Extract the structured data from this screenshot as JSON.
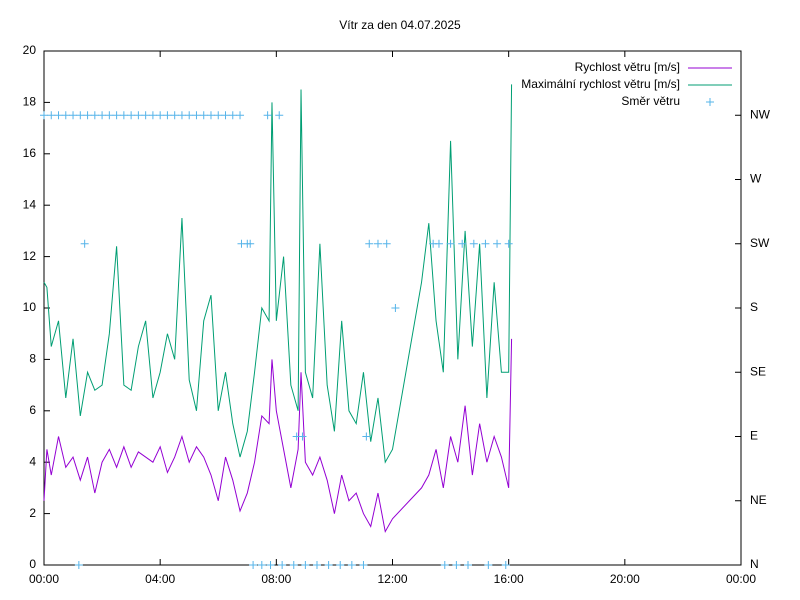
{
  "chart_data": {
    "type": "line",
    "title": "Vítr za den 04.07.2025",
    "xlim": [
      0,
      24
    ],
    "xticks": [
      {
        "value": 0,
        "label": "00:00"
      },
      {
        "value": 4,
        "label": "04:00"
      },
      {
        "value": 8,
        "label": "08:00"
      },
      {
        "value": 12,
        "label": "12:00"
      },
      {
        "value": 16,
        "label": "16:00"
      },
      {
        "value": 20,
        "label": "20:00"
      },
      {
        "value": 24,
        "label": "00:00"
      }
    ],
    "ylim": [
      0,
      20
    ],
    "yticks": [
      0,
      2,
      4,
      6,
      8,
      10,
      12,
      14,
      16,
      18,
      20
    ],
    "y2lim": [
      0,
      360
    ],
    "y2ticks": [
      {
        "value": 0,
        "label": "N"
      },
      {
        "value": 45,
        "label": "NE"
      },
      {
        "value": 90,
        "label": "E"
      },
      {
        "value": 135,
        "label": "SE"
      },
      {
        "value": 180,
        "label": "S"
      },
      {
        "value": 225,
        "label": "SW"
      },
      {
        "value": 270,
        "label": "W"
      },
      {
        "value": 315,
        "label": "NW"
      }
    ],
    "legend": "top right",
    "series": [
      {
        "name": "Rychlost větru [m/s]",
        "color": "#9400d3",
        "style": "line",
        "x": [
          0.0,
          0.1,
          0.25,
          0.5,
          0.75,
          1.0,
          1.25,
          1.5,
          1.75,
          2.0,
          2.25,
          2.5,
          2.75,
          3.0,
          3.25,
          3.5,
          3.75,
          4.0,
          4.25,
          4.5,
          4.75,
          5.0,
          5.25,
          5.5,
          5.75,
          6.0,
          6.25,
          6.5,
          6.75,
          7.0,
          7.25,
          7.5,
          7.75,
          7.85,
          8.0,
          8.25,
          8.5,
          8.75,
          8.85,
          9.0,
          9.25,
          9.5,
          9.75,
          10.0,
          10.25,
          10.5,
          10.75,
          11.0,
          11.25,
          11.5,
          11.75,
          12.0,
          13.0,
          13.25,
          13.5,
          13.75,
          14.0,
          14.25,
          14.5,
          14.75,
          15.0,
          15.25,
          15.5,
          15.75,
          16.0,
          16.1
        ],
        "values": [
          2.5,
          4.5,
          3.5,
          5.0,
          3.8,
          4.2,
          3.3,
          4.2,
          2.8,
          4.0,
          4.5,
          3.8,
          4.6,
          3.8,
          4.4,
          4.2,
          4.0,
          4.6,
          3.6,
          4.2,
          5.0,
          4.0,
          4.6,
          4.2,
          3.5,
          2.5,
          4.2,
          3.3,
          2.1,
          2.8,
          4.0,
          5.8,
          5.5,
          8.0,
          6.0,
          4.5,
          3.0,
          4.5,
          7.5,
          4.0,
          3.5,
          4.2,
          3.3,
          2.0,
          3.5,
          2.5,
          2.8,
          2.0,
          1.5,
          2.8,
          1.3,
          1.8,
          3.0,
          3.5,
          4.5,
          3.0,
          5.0,
          4.0,
          6.2,
          3.5,
          5.5,
          4.0,
          5.0,
          4.2,
          3.0,
          8.8
        ]
      },
      {
        "name": "Maximální rychlost větru [m/s]",
        "color": "#009e73",
        "style": "line",
        "x": [
          0.0,
          0.1,
          0.25,
          0.5,
          0.75,
          1.0,
          1.25,
          1.5,
          1.75,
          2.0,
          2.25,
          2.5,
          2.75,
          3.0,
          3.25,
          3.5,
          3.75,
          4.0,
          4.25,
          4.5,
          4.75,
          5.0,
          5.25,
          5.5,
          5.75,
          6.0,
          6.25,
          6.5,
          6.75,
          7.0,
          7.25,
          7.5,
          7.75,
          7.85,
          8.0,
          8.25,
          8.5,
          8.75,
          8.85,
          9.0,
          9.25,
          9.5,
          9.75,
          10.0,
          10.25,
          10.5,
          10.75,
          11.0,
          11.25,
          11.5,
          11.75,
          12.0,
          13.0,
          13.25,
          13.5,
          13.75,
          14.0,
          14.25,
          14.5,
          14.75,
          15.0,
          15.25,
          15.5,
          15.75,
          16.0,
          16.1
        ],
        "values": [
          11.0,
          10.8,
          8.5,
          9.5,
          6.5,
          8.8,
          5.8,
          7.5,
          6.8,
          7.0,
          9.0,
          12.4,
          7.0,
          6.8,
          8.5,
          9.5,
          6.5,
          7.5,
          9.0,
          8.0,
          13.5,
          7.2,
          6.0,
          9.5,
          10.5,
          6.0,
          7.5,
          5.5,
          4.2,
          5.2,
          7.5,
          10.0,
          9.5,
          18.0,
          9.5,
          12.0,
          7.0,
          6.0,
          18.5,
          7.5,
          6.5,
          12.5,
          7.0,
          5.2,
          9.5,
          6.0,
          5.5,
          7.5,
          4.8,
          6.5,
          4.0,
          4.5,
          11.0,
          13.3,
          9.5,
          7.5,
          16.5,
          8.0,
          13.0,
          8.5,
          12.5,
          6.5,
          11.0,
          7.5,
          7.5,
          18.7
        ]
      },
      {
        "name": "Směr větru",
        "color": "#56b4e9",
        "style": "points",
        "axis": "y2",
        "x": [
          0.0,
          0.25,
          0.5,
          0.75,
          1.0,
          1.25,
          1.5,
          1.75,
          2.0,
          2.25,
          2.5,
          2.75,
          3.0,
          3.25,
          3.5,
          3.75,
          4.0,
          4.25,
          4.5,
          4.75,
          5.0,
          5.25,
          5.5,
          5.75,
          6.0,
          6.25,
          6.5,
          6.75,
          1.4,
          1.2,
          6.8,
          7.0,
          7.1,
          7.7,
          8.1,
          7.2,
          7.5,
          7.8,
          8.2,
          8.6,
          9.0,
          9.4,
          9.8,
          10.2,
          10.6,
          11.0,
          8.7,
          8.9,
          11.1,
          11.2,
          11.5,
          11.8,
          12.1,
          13.4,
          13.6,
          14.0,
          14.4,
          14.8,
          15.2,
          15.6,
          16.0,
          13.8,
          14.2,
          14.6,
          15.3,
          15.9
        ],
        "values": [
          315,
          315,
          315,
          315,
          315,
          315,
          315,
          315,
          315,
          315,
          315,
          315,
          315,
          315,
          315,
          315,
          315,
          315,
          315,
          315,
          315,
          315,
          315,
          315,
          315,
          315,
          315,
          315,
          225,
          0,
          225,
          225,
          225,
          315,
          315,
          0,
          0,
          0,
          0,
          0,
          0,
          0,
          0,
          0,
          0,
          0,
          90,
          90,
          90,
          225,
          225,
          225,
          180,
          225,
          225,
          225,
          225,
          225,
          225,
          225,
          225,
          0,
          0,
          0,
          0,
          0
        ]
      }
    ]
  }
}
